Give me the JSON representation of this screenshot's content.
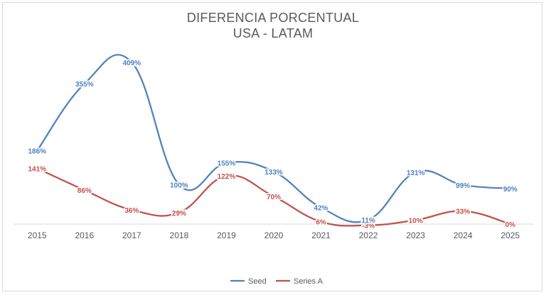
{
  "chart_data": {
    "type": "line",
    "title": "DIFERENCIA PORCENTUAL",
    "subtitle": "USA - LATAM",
    "categories": [
      "2015",
      "2016",
      "2017",
      "2018",
      "2019",
      "2020",
      "2021",
      "2022",
      "2023",
      "2024",
      "2025"
    ],
    "series": [
      {
        "name": "Seed",
        "color": "#4f81bd",
        "values": [
          186,
          355,
          409,
          100,
          155,
          133,
          42,
          11,
          131,
          99,
          90
        ],
        "labels": [
          "186%",
          "355%",
          "409%",
          "100%",
          "155%",
          "133%",
          "42%",
          "11%",
          "131%",
          "99%",
          "90%"
        ]
      },
      {
        "name": "Series A",
        "color": "#c0504d",
        "values": [
          141,
          86,
          36,
          29,
          122,
          70,
          6,
          -3,
          10,
          33,
          0
        ],
        "labels": [
          "141%",
          "86%",
          "36%",
          "29%",
          "122%",
          "70%",
          "6%",
          "-3%",
          "10%",
          "33%",
          "0%"
        ]
      }
    ],
    "ylim": [
      -15,
      420
    ],
    "smooth": true,
    "grid": false,
    "legend_position": "bottom"
  }
}
